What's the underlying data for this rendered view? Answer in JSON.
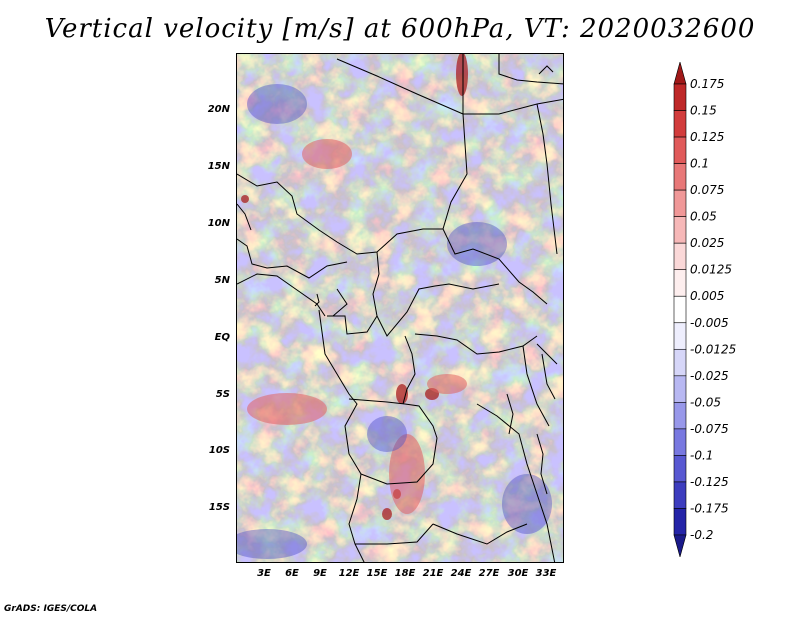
{
  "title": "Vertical velocity [m/s] at 600hPa, VT: 2020032600",
  "credit": "GrADS: IGES/COLA",
  "map": {
    "lat_ticks": [
      "20N",
      "15N",
      "10N",
      "5N",
      "EQ",
      "5S",
      "10S",
      "15S"
    ],
    "lon_ticks": [
      "3E",
      "6E",
      "9E",
      "12E",
      "15E",
      "18E",
      "21E",
      "24E",
      "27E",
      "30E",
      "33E"
    ]
  },
  "colorbar": {
    "levels": [
      "0.175",
      "0.15",
      "0.125",
      "0.1",
      "0.075",
      "0.05",
      "0.025",
      "0.0125",
      "0.005",
      "-0.005",
      "-0.0125",
      "-0.025",
      "-0.05",
      "-0.075",
      "-0.1",
      "-0.125",
      "-0.175",
      "-0.2"
    ],
    "colors": [
      "#a01818",
      "#be2828",
      "#d23c3c",
      "#e05a5a",
      "#e87878",
      "#f09898",
      "#f6b8b8",
      "#fad8d8",
      "#fdeeee",
      "#ffffff",
      "#eeeefd",
      "#d6d6f8",
      "#b8b8f2",
      "#9898ea",
      "#7878e0",
      "#5858d2",
      "#3c3cbe",
      "#2424a8",
      "#1a1a8a"
    ]
  }
}
